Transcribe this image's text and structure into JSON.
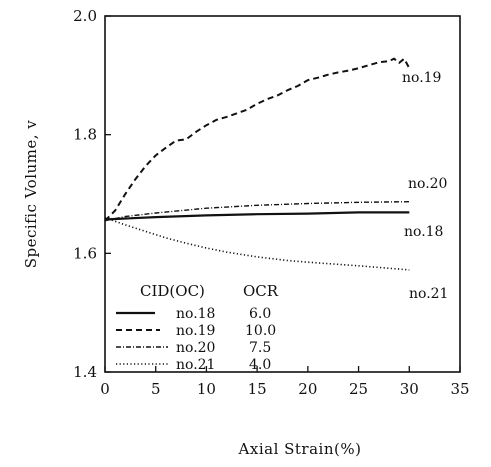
{
  "chart_data": {
    "type": "line",
    "title": "",
    "xlabel": "Axial Strain(%)",
    "ylabel": "Specific Volume, v",
    "xlim": [
      0,
      35
    ],
    "ylim": [
      1.4,
      2.0
    ],
    "x_ticks": [
      "0",
      "5",
      "10",
      "15",
      "20",
      "25",
      "30",
      "35"
    ],
    "y_ticks": [
      "1.4",
      "1.6",
      "1.8",
      "2.0"
    ],
    "grid": false,
    "legend": {
      "placement": "bottom-left",
      "header_col1": "CID(OC)",
      "header_col2": "OCR"
    },
    "series": [
      {
        "name": "no.18",
        "ocr": "6.0",
        "style": "solid",
        "x": [
          0,
          5,
          10,
          15,
          20,
          25,
          30
        ],
        "y": [
          1.657,
          1.661,
          1.664,
          1.666,
          1.667,
          1.669,
          1.669
        ]
      },
      {
        "name": "no.19",
        "ocr": "10.0",
        "style": "dashed",
        "x": [
          0,
          1,
          2,
          3,
          4,
          5,
          6,
          7,
          8,
          9,
          10,
          11,
          12,
          13,
          14,
          15,
          16,
          17,
          18,
          19,
          20,
          21,
          22,
          23,
          24,
          25,
          26,
          27,
          28,
          28.5,
          29,
          29.5,
          30
        ],
        "y": [
          1.655,
          1.672,
          1.7,
          1.725,
          1.747,
          1.765,
          1.778,
          1.79,
          1.792,
          1.805,
          1.816,
          1.825,
          1.83,
          1.836,
          1.842,
          1.852,
          1.86,
          1.866,
          1.875,
          1.882,
          1.892,
          1.896,
          1.901,
          1.905,
          1.908,
          1.912,
          1.917,
          1.922,
          1.924,
          1.928,
          1.921,
          1.928,
          1.912
        ]
      },
      {
        "name": "no.20",
        "ocr": "7.5",
        "style": "dash-dot",
        "x": [
          0,
          2,
          5,
          10,
          15,
          20,
          25,
          30
        ],
        "y": [
          1.655,
          1.662,
          1.668,
          1.676,
          1.681,
          1.684,
          1.686,
          1.687
        ]
      },
      {
        "name": "no.21",
        "ocr": "4.0",
        "style": "dotted",
        "x": [
          0,
          2,
          4,
          6,
          8,
          10,
          12,
          15,
          18,
          20,
          25,
          30
        ],
        "y": [
          1.66,
          1.648,
          1.637,
          1.626,
          1.617,
          1.609,
          1.602,
          1.594,
          1.588,
          1.585,
          1.579,
          1.572
        ]
      }
    ]
  }
}
